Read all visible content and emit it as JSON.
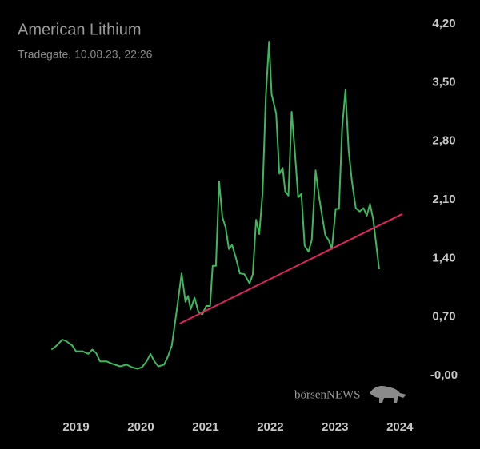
{
  "chart_data": {
    "type": "line",
    "title": "American Lithium",
    "subtitle": "Tradegate, 10.08.23, 22:26",
    "watermark": "börsenNEWS",
    "x": [
      2018.62,
      2018.69,
      2018.79,
      2018.85,
      2018.94,
      2019.0,
      2019.1,
      2019.19,
      2019.25,
      2019.31,
      2019.37,
      2019.47,
      2019.56,
      2019.68,
      2019.78,
      2019.86,
      2019.95,
      2020.02,
      2020.09,
      2020.15,
      2020.21,
      2020.27,
      2020.36,
      2020.42,
      2020.48,
      2020.57,
      2020.63,
      2020.69,
      2020.73,
      2020.77,
      2020.83,
      2020.89,
      2020.95,
      2021.01,
      2021.07,
      2021.11,
      2021.16,
      2021.21,
      2021.26,
      2021.31,
      2021.36,
      2021.41,
      2021.47,
      2021.53,
      2021.6,
      2021.68,
      2021.73,
      2021.78,
      2021.83,
      2021.88,
      2021.93,
      2021.98,
      2022.02,
      2022.09,
      2022.14,
      2022.19,
      2022.23,
      2022.28,
      2022.33,
      2022.38,
      2022.43,
      2022.48,
      2022.53,
      2022.59,
      2022.64,
      2022.7,
      2022.75,
      2022.8,
      2022.85,
      2022.9,
      2022.95,
      2023.01,
      2023.06,
      2023.11,
      2023.16,
      2023.21,
      2023.26,
      2023.32,
      2023.38,
      2023.44,
      2023.49,
      2023.54,
      2023.59,
      2023.68
    ],
    "series": [
      {
        "color": "#3cb95a",
        "values": [
          0.31,
          0.35,
          0.43,
          0.41,
          0.36,
          0.29,
          0.29,
          0.26,
          0.31,
          0.27,
          0.17,
          0.17,
          0.14,
          0.11,
          0.13,
          0.1,
          0.08,
          0.1,
          0.17,
          0.26,
          0.17,
          0.11,
          0.13,
          0.23,
          0.36,
          0.86,
          1.22,
          0.88,
          0.95,
          0.79,
          0.93,
          0.76,
          0.73,
          0.83,
          0.83,
          1.31,
          1.31,
          2.32,
          1.89,
          1.77,
          1.51,
          1.56,
          1.4,
          1.22,
          1.21,
          1.1,
          1.21,
          1.86,
          1.69,
          2.18,
          3.32,
          3.99,
          3.36,
          3.13,
          2.41,
          2.48,
          2.2,
          2.15,
          3.15,
          2.67,
          2.13,
          2.17,
          1.55,
          1.48,
          1.62,
          2.45,
          2.15,
          1.91,
          1.67,
          1.62,
          1.51,
          1.99,
          1.99,
          2.96,
          3.41,
          2.69,
          2.32,
          2.0,
          1.96,
          2.0,
          1.91,
          2.05,
          1.86,
          1.27
        ]
      }
    ],
    "trendline": {
      "color": "#e0245e",
      "x": [
        2020.6,
        2024.04
      ],
      "values": [
        0.62,
        1.93
      ]
    },
    "xlim": [
      2018.32,
      2024.25
    ],
    "xticks": [
      2019,
      2020,
      2021,
      2022,
      2023,
      2024
    ],
    "ylim": [
      0,
      4.2
    ],
    "yticks": [
      {
        "value": 4.2,
        "label": "4,20"
      },
      {
        "value": 3.5,
        "label": "3,50"
      },
      {
        "value": 2.8,
        "label": "2,80"
      },
      {
        "value": 2.1,
        "label": "2,10"
      },
      {
        "value": 1.4,
        "label": "1,40"
      },
      {
        "value": 0.7,
        "label": "0,70"
      },
      {
        "value": 0,
        "label": "-0,00"
      }
    ]
  }
}
